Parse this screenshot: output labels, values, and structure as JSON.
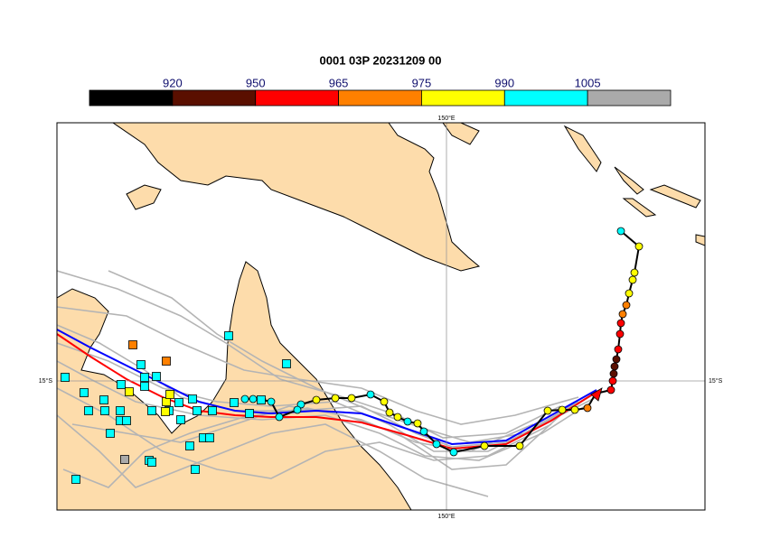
{
  "title": "0001 03P 20231209 00",
  "colorbar": {
    "colors": [
      "#000000",
      "#5a0f00",
      "#ff0000",
      "#ff8000",
      "#ffff00",
      "#00ffff",
      "#aaaaaa"
    ],
    "labels": [
      920,
      950,
      965,
      975,
      990,
      1005
    ]
  },
  "map": {
    "lon_label": "150°E",
    "lat_label": "15°S"
  }
}
